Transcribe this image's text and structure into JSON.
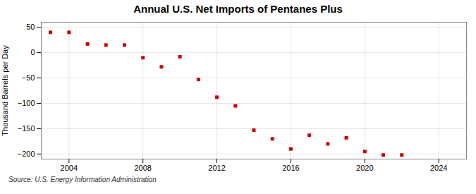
{
  "chart_data": {
    "type": "scatter",
    "title": "Annual U.S. Net Imports of Pentanes Plus",
    "ylabel": "Thousand Barrels per Day",
    "source": "Source: U.S. Energy Information Administration",
    "x": [
      2003,
      2004,
      2005,
      2006,
      2007,
      2008,
      2009,
      2010,
      2011,
      2012,
      2013,
      2014,
      2015,
      2016,
      2017,
      2018,
      2019,
      2020,
      2021,
      2022
    ],
    "values": [
      40,
      40,
      17,
      15,
      15,
      -10,
      -28,
      -8,
      -53,
      -88,
      -105,
      -153,
      -170,
      -190,
      -163,
      -180,
      -168,
      -195,
      -202,
      -202
    ],
    "color": "#cc0000",
    "marker": "square",
    "xlim": [
      2002.5,
      2025.5
    ],
    "ylim": [
      -210,
      60
    ],
    "xticks": [
      2004,
      2008,
      2012,
      2016,
      2020,
      2024
    ],
    "yticks": [
      50,
      0,
      -50,
      -100,
      -150,
      -200
    ],
    "grid": true
  }
}
